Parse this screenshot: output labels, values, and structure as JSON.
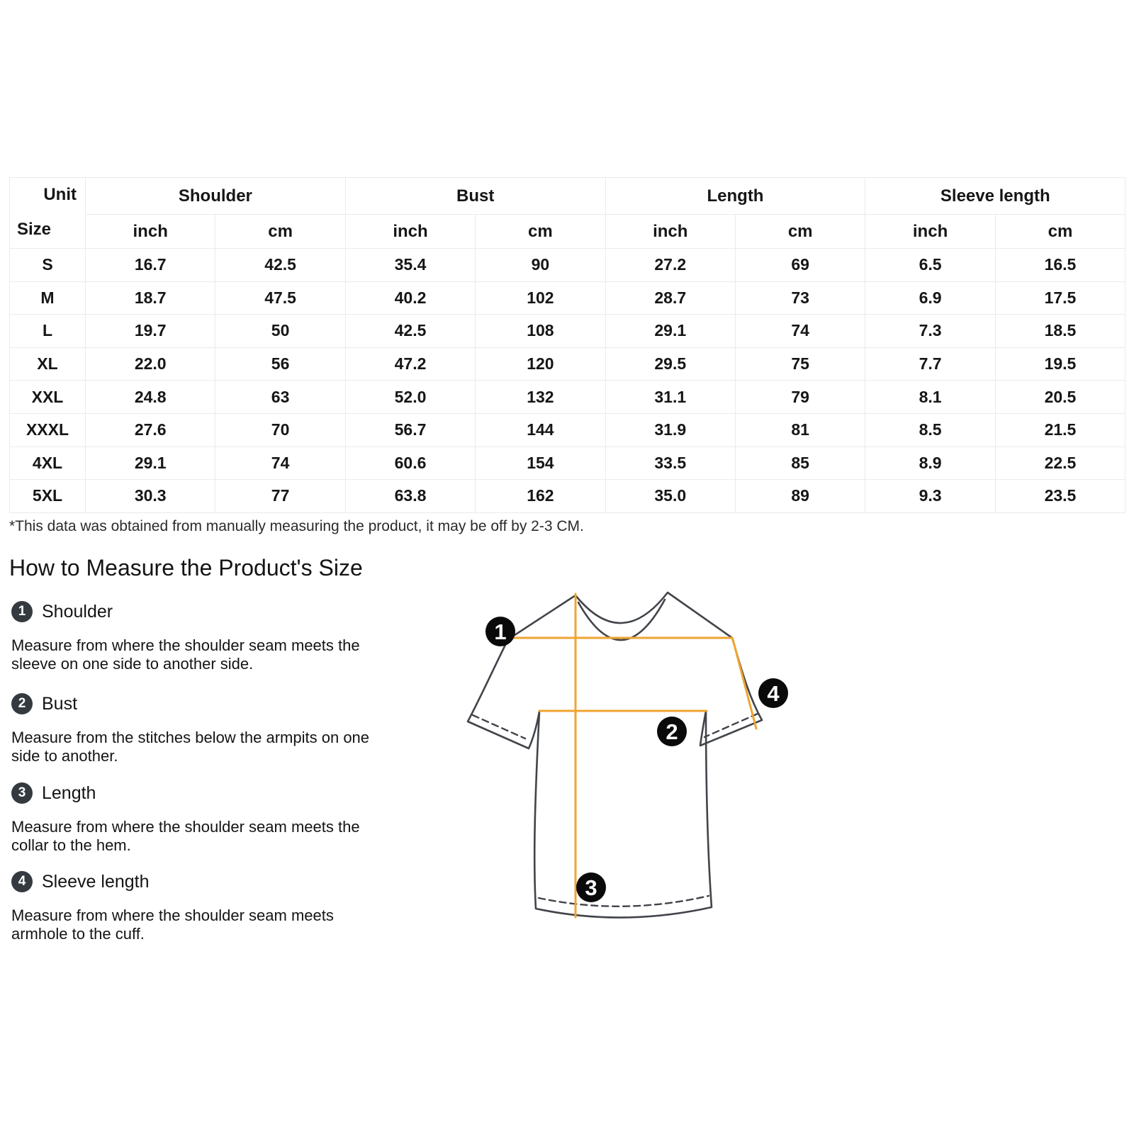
{
  "size_table": {
    "corner_top": "Unit",
    "corner_bottom": "Size",
    "groups": [
      "Shoulder",
      "Bust",
      "Length",
      "Sleeve length"
    ],
    "unit_row": [
      "inch",
      "cm",
      "inch",
      "cm",
      "inch",
      "cm",
      "inch",
      "cm"
    ],
    "rows": [
      {
        "size": "S",
        "values": [
          "16.7",
          "42.5",
          "35.4",
          "90",
          "27.2",
          "69",
          "6.5",
          "16.5"
        ]
      },
      {
        "size": "M",
        "values": [
          "18.7",
          "47.5",
          "40.2",
          "102",
          "28.7",
          "73",
          "6.9",
          "17.5"
        ]
      },
      {
        "size": "L",
        "values": [
          "19.7",
          "50",
          "42.5",
          "108",
          "29.1",
          "74",
          "7.3",
          "18.5"
        ]
      },
      {
        "size": "XL",
        "values": [
          "22.0",
          "56",
          "47.2",
          "120",
          "29.5",
          "75",
          "7.7",
          "19.5"
        ]
      },
      {
        "size": "XXL",
        "values": [
          "24.8",
          "63",
          "52.0",
          "132",
          "31.1",
          "79",
          "8.1",
          "20.5"
        ]
      },
      {
        "size": "XXXL",
        "values": [
          "27.6",
          "70",
          "56.7",
          "144",
          "31.9",
          "81",
          "8.5",
          "21.5"
        ]
      },
      {
        "size": "4XL",
        "values": [
          "29.1",
          "74",
          "60.6",
          "154",
          "33.5",
          "85",
          "8.9",
          "22.5"
        ]
      },
      {
        "size": "5XL",
        "values": [
          "30.3",
          "77",
          "63.8",
          "162",
          "35.0",
          "89",
          "9.3",
          "23.5"
        ]
      }
    ],
    "footnote": "*This data was obtained from manually measuring the product, it may be off by 2-3 CM."
  },
  "how_to": {
    "heading": "How to Measure the Product's Size",
    "steps": [
      {
        "num": "1",
        "title": "Shoulder",
        "desc": "Measure from where the shoulder seam meets the\nsleeve on one side to another side."
      },
      {
        "num": "2",
        "title": "Bust",
        "desc": "Measure from the stitches below the armpits on one\nside to another."
      },
      {
        "num": "3",
        "title": "Length",
        "desc": "Measure from where the shoulder seam meets the\ncollar to the hem."
      },
      {
        "num": "4",
        "title": "Sleeve length",
        "desc": "Measure from where the shoulder seam meets\narmhole to the cuff."
      }
    ]
  },
  "diagram": {
    "badges": [
      "1",
      "2",
      "3",
      "4"
    ]
  },
  "colors": {
    "measure_line_orange": "#efa431",
    "shirt_outline": "#41444a",
    "diagram_badge_black": "#0a0a0a",
    "step_badge_charcoal": "#343a40",
    "table_border": "#ebebeb",
    "text": "#141414"
  }
}
